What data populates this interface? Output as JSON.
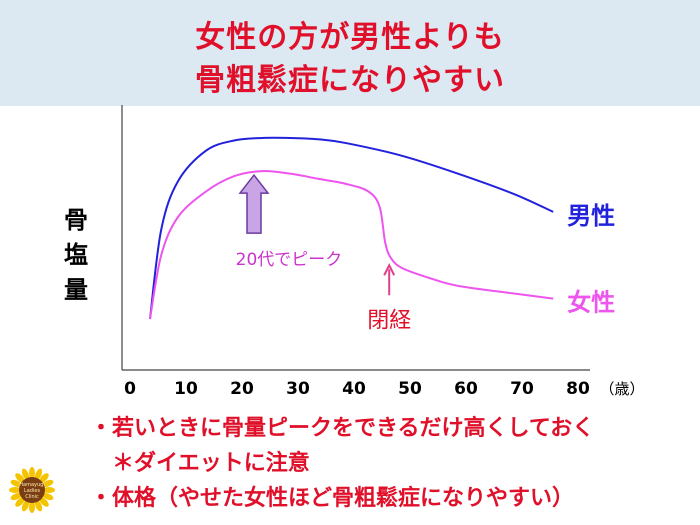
{
  "title": {
    "line1": "女性の方が男性よりも",
    "line2": "骨粗鬆症になりやすい"
  },
  "chart_data": {
    "type": "line",
    "ylabel": "骨塩量",
    "xlabel": "（歳）",
    "x_ticks": [
      0,
      10,
      20,
      30,
      40,
      50,
      60,
      70,
      80
    ],
    "x_range": [
      0,
      80
    ],
    "y_range": [
      0,
      1
    ],
    "grid": false,
    "series": [
      {
        "name": "男性",
        "color": "#2222dd",
        "x": [
          5,
          7,
          10,
          15,
          20,
          25,
          30,
          35,
          40,
          50,
          60,
          70,
          77
        ],
        "y": [
          0.2,
          0.55,
          0.74,
          0.86,
          0.9,
          0.91,
          0.91,
          0.905,
          0.89,
          0.84,
          0.77,
          0.69,
          0.62
        ]
      },
      {
        "name": "女性",
        "color": "#ee55ee",
        "x": [
          5,
          7,
          10,
          15,
          20,
          25,
          30,
          35,
          40,
          44,
          46,
          47,
          48,
          50,
          55,
          60,
          70,
          77
        ],
        "y": [
          0.2,
          0.45,
          0.6,
          0.7,
          0.76,
          0.78,
          0.77,
          0.75,
          0.73,
          0.7,
          0.64,
          0.5,
          0.44,
          0.4,
          0.36,
          0.33,
          0.3,
          0.28
        ]
      }
    ],
    "annotations": [
      {
        "text": "20代でピーク",
        "x": 25,
        "y": 0.78,
        "color": "#cc33cc"
      },
      {
        "text": "閉経",
        "x": 47,
        "y": 0.45,
        "color": "#e0102a"
      }
    ]
  },
  "notes": [
    "・若いときに骨量ピークをできるだけ高くしておく",
    "＊ダイエットに注意",
    "・体格（やせた女性ほど骨粗鬆症になりやすい）"
  ],
  "logo": {
    "lines": [
      "Hamayugi",
      "Ladies",
      "Clinic"
    ],
    "colors": {
      "petal": "#f5c400",
      "center": "#7a3e12"
    }
  }
}
